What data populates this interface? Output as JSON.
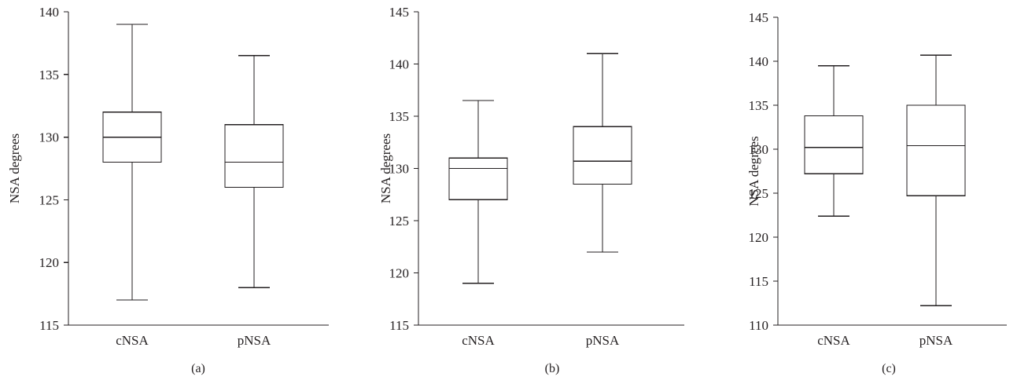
{
  "chart_data": [
    {
      "type": "box",
      "panel_label": "(a)",
      "ylabel": "NSA degrees",
      "ylim": [
        115,
        140
      ],
      "yticks": [
        115,
        120,
        125,
        130,
        135,
        140
      ],
      "categories": [
        "cNSA",
        "pNSA"
      ],
      "boxes": [
        {
          "category": "cNSA",
          "min": 117,
          "q1": 128,
          "median": 130,
          "q3": 132,
          "max": 139
        },
        {
          "category": "pNSA",
          "min": 118,
          "q1": 126,
          "median": 128,
          "q3": 131,
          "max": 136.5
        }
      ]
    },
    {
      "type": "box",
      "panel_label": "(b)",
      "ylabel": "NSA degrees",
      "ylim": [
        115,
        145
      ],
      "yticks": [
        115,
        120,
        125,
        130,
        135,
        140,
        145
      ],
      "categories": [
        "cNSA",
        "pNSA"
      ],
      "boxes": [
        {
          "category": "cNSA",
          "min": 119,
          "q1": 127,
          "median": 130,
          "q3": 131,
          "max": 136.5
        },
        {
          "category": "pNSA",
          "min": 122,
          "q1": 128.5,
          "median": 130.7,
          "q3": 134,
          "max": 141
        }
      ]
    },
    {
      "type": "box",
      "panel_label": "(c)",
      "ylabel": "NSA degrees",
      "ylim": [
        110,
        145
      ],
      "yticks": [
        110,
        115,
        120,
        125,
        130,
        135,
        140,
        145
      ],
      "categories": [
        "cNSA",
        "pNSA"
      ],
      "boxes": [
        {
          "category": "cNSA",
          "min": 122.4,
          "q1": 127.2,
          "median": 130.2,
          "q3": 133.8,
          "max": 139.5
        },
        {
          "category": "pNSA",
          "min": 112.2,
          "q1": 124.7,
          "median": 130.4,
          "q3": 135,
          "max": 140.7
        }
      ]
    }
  ]
}
